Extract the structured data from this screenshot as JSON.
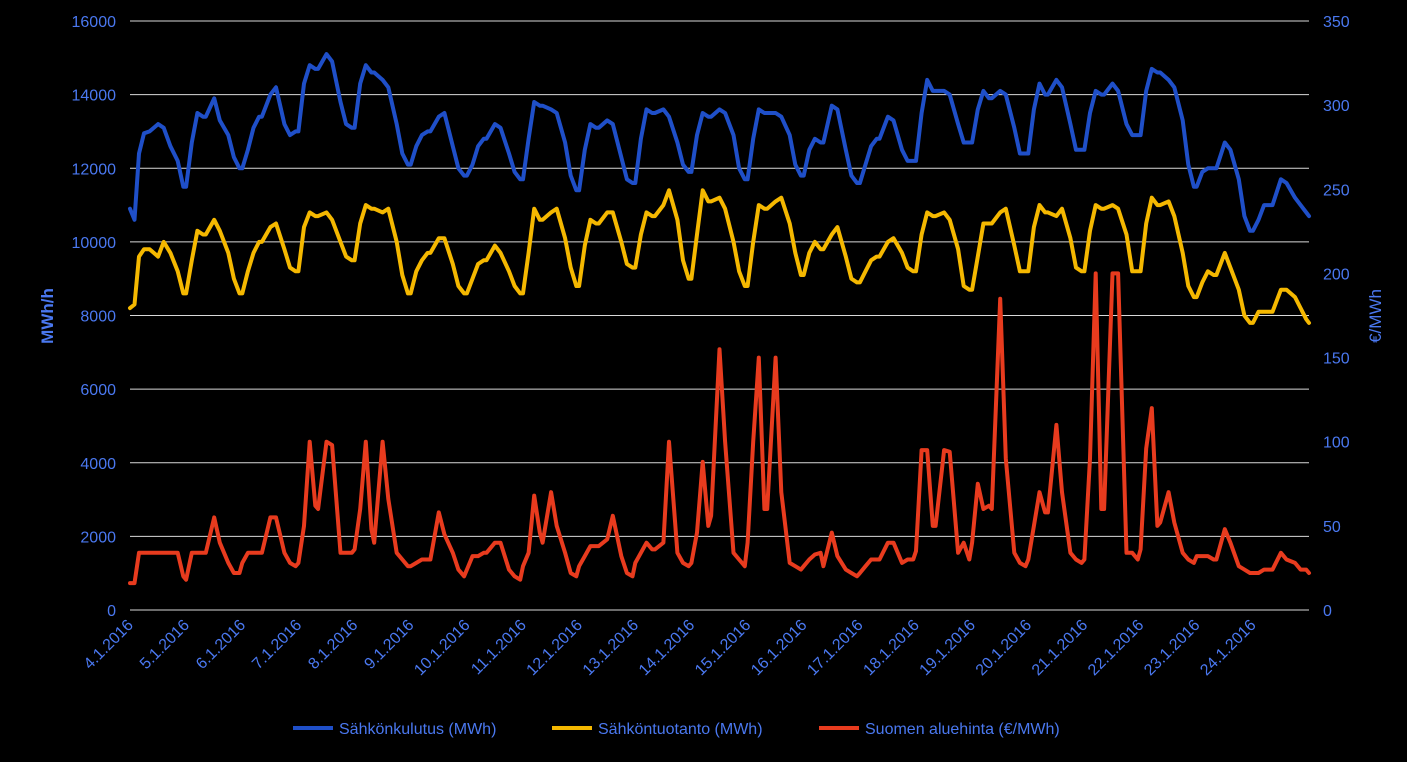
{
  "chart_data": {
    "type": "line",
    "y_left_label": "MWh/h",
    "y_right_label": "€/MWh",
    "y_left_ticks": [
      "0",
      "2000",
      "4000",
      "6000",
      "8000",
      "10000",
      "12000",
      "14000",
      "16000"
    ],
    "y_right_ticks": [
      "0",
      "50",
      "100",
      "150",
      "200",
      "250",
      "300",
      "350"
    ],
    "ylim_left": [
      0,
      16000
    ],
    "ylim_right": [
      0,
      350
    ],
    "x_start": "4.1.2016",
    "x_end": "24.1.2016",
    "x_tick_labels": [
      "4.1.2016",
      "5.1.2016",
      "6.1.2016",
      "7.1.2016",
      "8.1.2016",
      "9.1.2016",
      "10.1.2016",
      "11.1.2016",
      "12.1.2016",
      "13.1.2016",
      "14.1.2016",
      "15.1.2016",
      "16.1.2016",
      "17.1.2016",
      "18.1.2016",
      "19.1.2016",
      "20.1.2016",
      "21.1.2016",
      "22.1.2016",
      "23.1.2016",
      "24.1.2016"
    ],
    "x": [
      4.0,
      4.08,
      4.16,
      4.25,
      4.35,
      4.5,
      4.6,
      4.72,
      4.85,
      4.95,
      5.0,
      5.1,
      5.2,
      5.3,
      5.35,
      5.5,
      5.6,
      5.75,
      5.85,
      5.95,
      6.0,
      6.1,
      6.2,
      6.3,
      6.35,
      6.5,
      6.6,
      6.75,
      6.85,
      6.95,
      7.0,
      7.1,
      7.2,
      7.3,
      7.35,
      7.5,
      7.6,
      7.75,
      7.85,
      7.95,
      8.0,
      8.1,
      8.2,
      8.3,
      8.35,
      8.5,
      8.6,
      8.75,
      8.85,
      8.95,
      9.0,
      9.1,
      9.2,
      9.3,
      9.35,
      9.5,
      9.6,
      9.75,
      9.85,
      9.95,
      10.0,
      10.1,
      10.2,
      10.3,
      10.35,
      10.5,
      10.6,
      10.75,
      10.85,
      10.95,
      11.0,
      11.1,
      11.2,
      11.3,
      11.35,
      11.5,
      11.6,
      11.75,
      11.85,
      11.95,
      12.0,
      12.1,
      12.2,
      12.3,
      12.35,
      12.5,
      12.6,
      12.75,
      12.85,
      12.95,
      13.0,
      13.1,
      13.2,
      13.3,
      13.35,
      13.5,
      13.6,
      13.75,
      13.85,
      13.95,
      14.0,
      14.1,
      14.2,
      14.3,
      14.35,
      14.5,
      14.6,
      14.75,
      14.85,
      14.95,
      15.0,
      15.1,
      15.2,
      15.3,
      15.35,
      15.5,
      15.6,
      15.75,
      15.85,
      15.95,
      16.0,
      16.1,
      16.2,
      16.3,
      16.35,
      16.5,
      16.6,
      16.75,
      16.85,
      16.95,
      17.0,
      17.1,
      17.2,
      17.3,
      17.35,
      17.5,
      17.6,
      17.75,
      17.85,
      17.95,
      18.0,
      18.1,
      18.2,
      18.3,
      18.35,
      18.5,
      18.6,
      18.75,
      18.85,
      18.95,
      19.0,
      19.1,
      19.2,
      19.3,
      19.35,
      19.5,
      19.6,
      19.75,
      19.85,
      19.95,
      20.0,
      20.1,
      20.2,
      20.3,
      20.35,
      20.5,
      20.6,
      20.75,
      20.85,
      20.95,
      21.0,
      21.1,
      21.2,
      21.3,
      21.35,
      21.5,
      21.6,
      21.75,
      21.85,
      21.95,
      22.0,
      22.1,
      22.2,
      22.3,
      22.35,
      22.5,
      22.6,
      22.75,
      22.85,
      22.95,
      23.0,
      23.1,
      23.2,
      23.3,
      23.35,
      23.5,
      23.6,
      23.75,
      23.85,
      23.95,
      24.0,
      24.1,
      24.2,
      24.3,
      24.35,
      24.5,
      24.6,
      24.75,
      24.85,
      24.95,
      25.0
    ],
    "series": [
      {
        "name": "Sähkönkulutus (MWh)",
        "axis": "left",
        "color": "#1f4fc8",
        "values": [
          10900,
          10600,
          12400,
          12950,
          13000,
          13200,
          13100,
          12600,
          12200,
          11500,
          11500,
          12700,
          13500,
          13400,
          13400,
          13900,
          13300,
          12900,
          12300,
          12000,
          12000,
          12500,
          13100,
          13400,
          13400,
          14000,
          14200,
          13200,
          12900,
          13000,
          13000,
          14300,
          14800,
          14700,
          14700,
          15100,
          14900,
          13800,
          13200,
          13100,
          13100,
          14300,
          14800,
          14600,
          14600,
          14400,
          14200,
          13200,
          12400,
          12100,
          12100,
          12600,
          12900,
          13000,
          13000,
          13400,
          13500,
          12600,
          12000,
          11800,
          11800,
          12100,
          12600,
          12800,
          12800,
          13200,
          13100,
          12400,
          11900,
          11700,
          11700,
          12800,
          13800,
          13700,
          13700,
          13600,
          13500,
          12700,
          11800,
          11400,
          11400,
          12500,
          13200,
          13100,
          13100,
          13300,
          13200,
          12300,
          11700,
          11600,
          11600,
          12800,
          13600,
          13500,
          13500,
          13600,
          13400,
          12700,
          12100,
          11900,
          11900,
          12900,
          13500,
          13400,
          13400,
          13600,
          13500,
          12900,
          12000,
          11700,
          11700,
          12800,
          13600,
          13500,
          13500,
          13500,
          13400,
          12900,
          12100,
          11800,
          11800,
          12500,
          12800,
          12700,
          12700,
          13700,
          13600,
          12500,
          11800,
          11600,
          11600,
          12100,
          12600,
          12800,
          12800,
          13400,
          13300,
          12500,
          12200,
          12200,
          12200,
          13500,
          14400,
          14100,
          14100,
          14100,
          14000,
          13200,
          12700,
          12700,
          12700,
          13600,
          14100,
          13900,
          13900,
          14100,
          14000,
          13100,
          12400,
          12400,
          12400,
          13600,
          14300,
          14000,
          14000,
          14400,
          14200,
          13200,
          12500,
          12500,
          12500,
          13500,
          14100,
          14000,
          14000,
          14300,
          14100,
          13200,
          12900,
          12900,
          12900,
          14100,
          14700,
          14600,
          14600,
          14400,
          14200,
          13300,
          12100,
          11500,
          11500,
          11900,
          12000,
          12000,
          12000,
          12700,
          12500,
          11700,
          10700,
          10300,
          10300,
          10600,
          11000,
          11000,
          11000,
          11700,
          11600,
          11200,
          11000,
          10800,
          10700
        ]
      },
      {
        "name": "Sähköntuotanto (MWh)",
        "axis": "left",
        "color": "#f5b800",
        "values": [
          8200,
          8300,
          9600,
          9800,
          9800,
          9600,
          10000,
          9700,
          9200,
          8600,
          8600,
          9500,
          10300,
          10200,
          10200,
          10600,
          10300,
          9700,
          9000,
          8600,
          8600,
          9200,
          9700,
          10000,
          10000,
          10400,
          10500,
          9800,
          9300,
          9200,
          9200,
          10400,
          10800,
          10700,
          10700,
          10800,
          10600,
          10000,
          9600,
          9500,
          9500,
          10500,
          11000,
          10900,
          10900,
          10800,
          10900,
          10000,
          9100,
          8600,
          8600,
          9200,
          9500,
          9700,
          9700,
          10100,
          10100,
          9400,
          8800,
          8600,
          8600,
          9000,
          9400,
          9500,
          9500,
          9900,
          9700,
          9200,
          8800,
          8600,
          8600,
          9700,
          10900,
          10600,
          10600,
          10800,
          10900,
          10100,
          9300,
          8800,
          8800,
          9900,
          10600,
          10500,
          10500,
          10800,
          10800,
          10000,
          9400,
          9300,
          9300,
          10200,
          10800,
          10700,
          10700,
          11000,
          11400,
          10600,
          9500,
          9000,
          9000,
          10200,
          11400,
          11100,
          11100,
          11200,
          10900,
          10000,
          9200,
          8800,
          8800,
          10000,
          11000,
          10900,
          10900,
          11100,
          11200,
          10500,
          9700,
          9100,
          9100,
          9700,
          10000,
          9800,
          9800,
          10200,
          10400,
          9600,
          9000,
          8900,
          8900,
          9200,
          9500,
          9600,
          9600,
          10000,
          10100,
          9700,
          9300,
          9200,
          9200,
          10200,
          10800,
          10700,
          10700,
          10800,
          10600,
          9800,
          8800,
          8700,
          8700,
          9600,
          10500,
          10500,
          10500,
          10800,
          10900,
          9900,
          9200,
          9200,
          9200,
          10400,
          11000,
          10800,
          10800,
          10700,
          10900,
          10100,
          9300,
          9200,
          9200,
          10300,
          11000,
          10900,
          10900,
          11000,
          10900,
          10200,
          9200,
          9200,
          9200,
          10500,
          11200,
          11000,
          11000,
          11100,
          10700,
          9700,
          8800,
          8500,
          8500,
          8900,
          9200,
          9100,
          9100,
          9700,
          9300,
          8700,
          8000,
          7800,
          7800,
          8100,
          8100,
          8100,
          8100,
          8700,
          8700,
          8500,
          8200,
          7900,
          7800
        ]
      },
      {
        "name": "Suomen aluehinta (€/MWh)",
        "axis": "right",
        "color": "#e83b1e",
        "values": [
          16,
          16,
          34,
          34,
          34,
          34,
          34,
          34,
          34,
          20,
          18,
          34,
          34,
          34,
          34,
          55,
          40,
          28,
          22,
          22,
          28,
          34,
          34,
          34,
          34,
          55,
          55,
          34,
          28,
          26,
          28,
          50,
          100,
          62,
          60,
          100,
          98,
          34,
          34,
          34,
          36,
          60,
          100,
          48,
          40,
          100,
          66,
          34,
          30,
          26,
          26,
          28,
          30,
          30,
          30,
          58,
          45,
          34,
          24,
          20,
          24,
          32,
          32,
          34,
          34,
          40,
          40,
          24,
          20,
          18,
          26,
          34,
          68,
          46,
          40,
          70,
          50,
          34,
          22,
          20,
          26,
          32,
          38,
          38,
          38,
          42,
          56,
          32,
          22,
          20,
          28,
          34,
          40,
          36,
          36,
          40,
          100,
          34,
          28,
          26,
          28,
          46,
          88,
          50,
          56,
          155,
          100,
          34,
          30,
          26,
          40,
          100,
          150,
          60,
          60,
          150,
          70,
          28,
          26,
          24,
          26,
          30,
          33,
          34,
          26,
          46,
          32,
          24,
          22,
          20,
          22,
          26,
          30,
          30,
          30,
          40,
          40,
          28,
          30,
          30,
          35,
          95,
          95,
          50,
          50,
          95,
          94,
          34,
          40,
          30,
          40,
          75,
          60,
          62,
          60,
          185,
          90,
          34,
          28,
          26,
          30,
          50,
          70,
          58,
          58,
          110,
          70,
          34,
          30,
          28,
          30,
          90,
          200,
          60,
          60,
          200,
          200,
          34,
          34,
          30,
          36,
          96,
          120,
          50,
          52,
          70,
          52,
          34,
          30,
          28,
          32,
          32,
          32,
          30,
          30,
          48,
          40,
          26,
          24,
          22,
          22,
          22,
          24,
          24,
          24,
          34,
          30,
          28,
          24,
          24,
          22
        ]
      }
    ],
    "legend_position": "bottom"
  }
}
